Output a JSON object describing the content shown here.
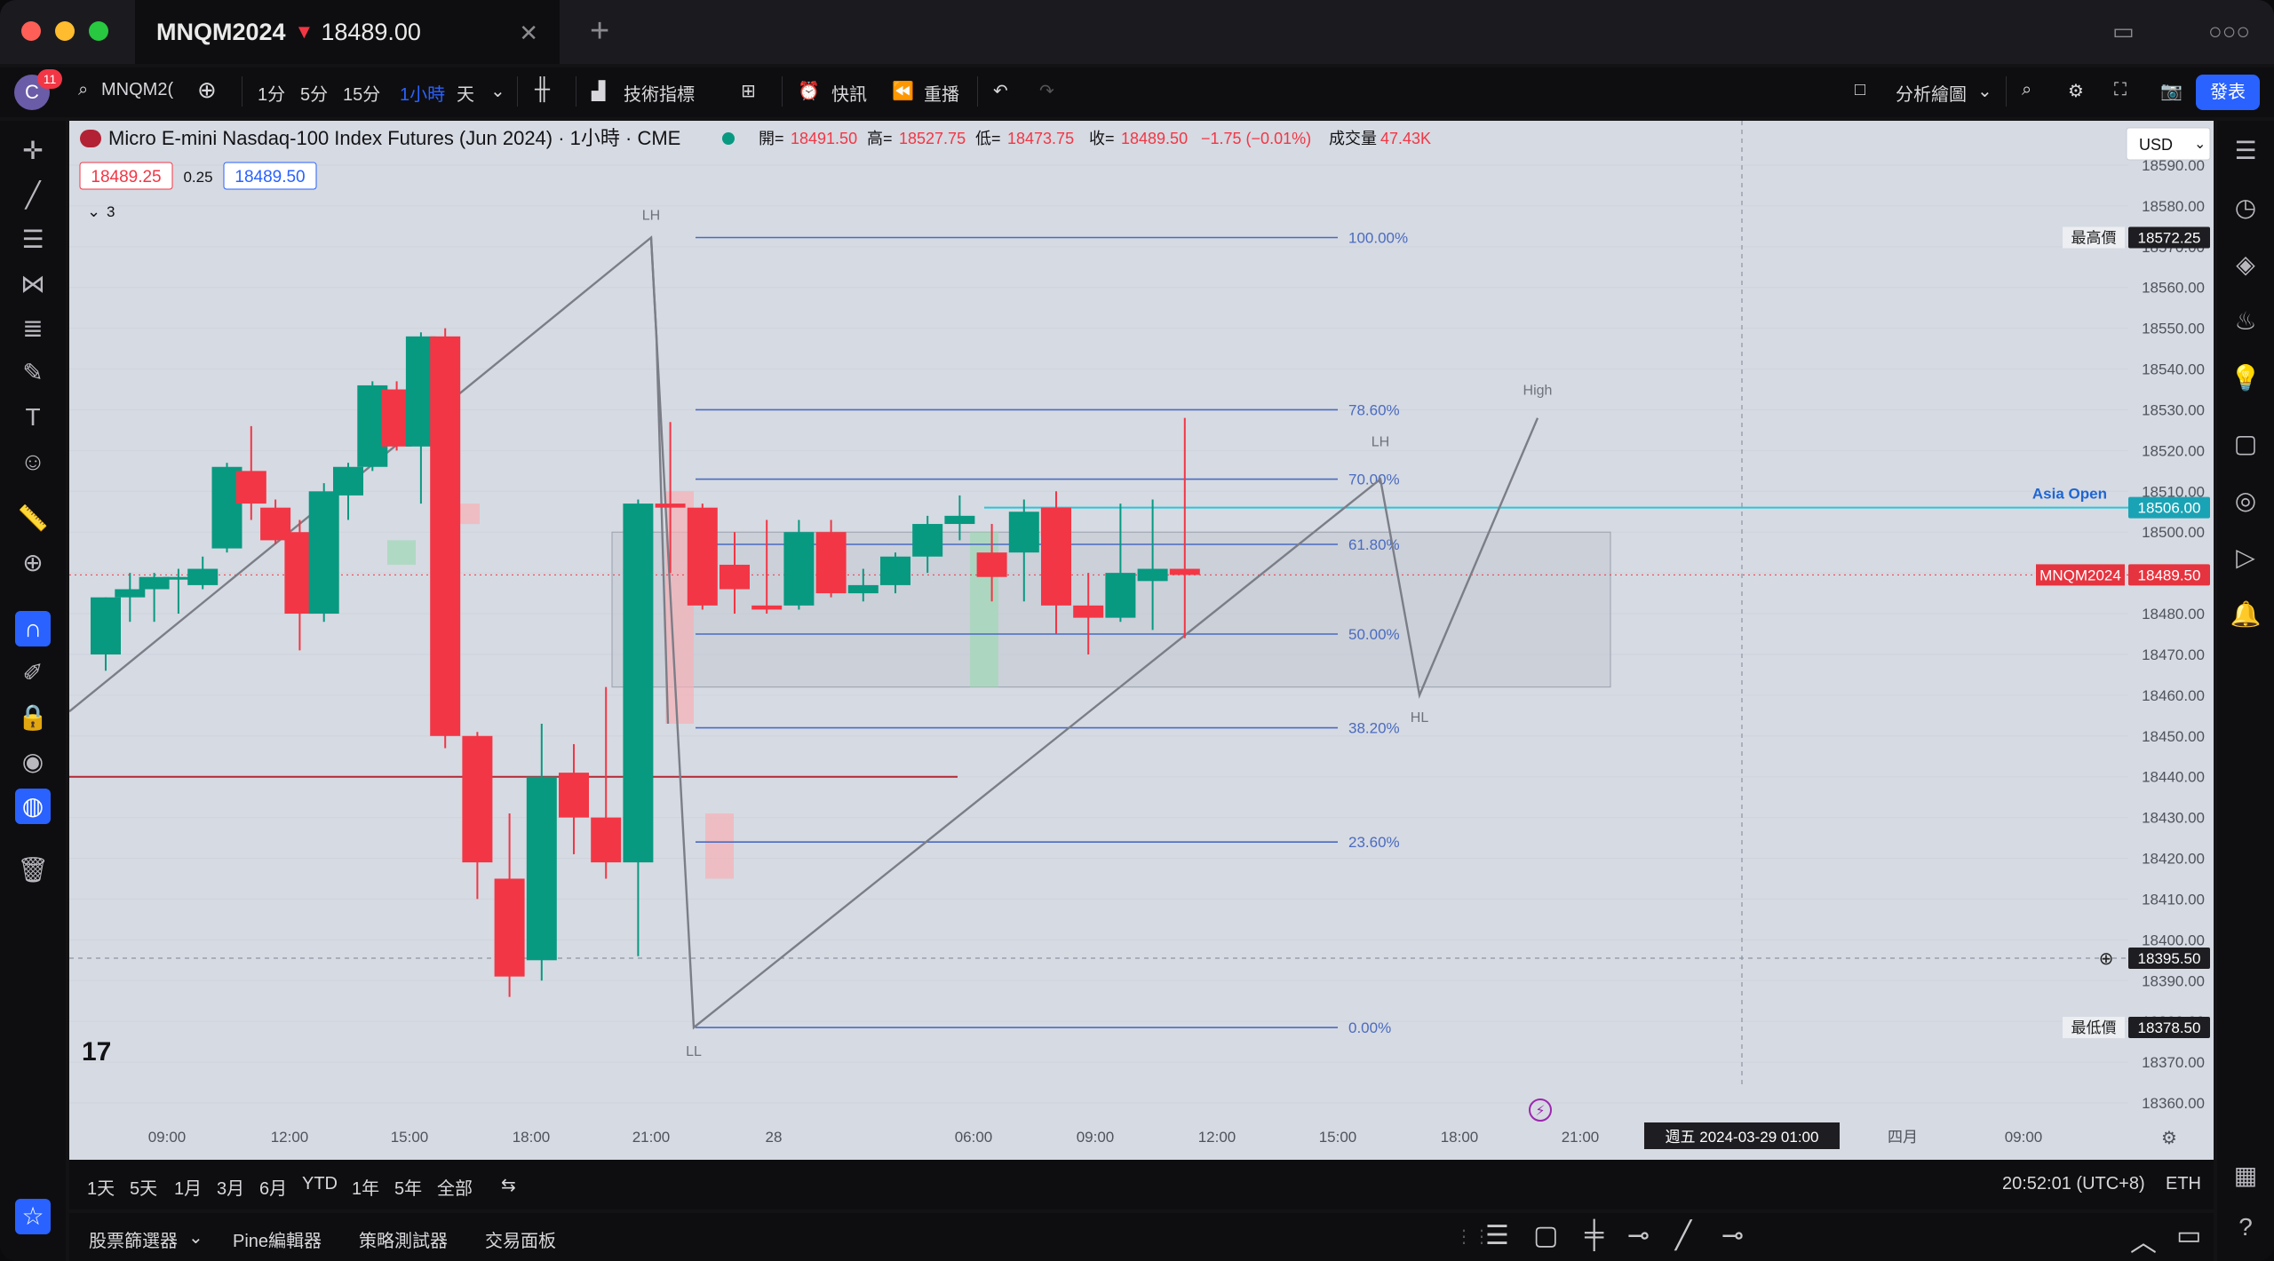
{
  "window": {
    "tab_symbol": "MNQM2024",
    "tab_price": "18489.00",
    "tab_direction_icon": "triangle-down-icon",
    "traffic_colors": [
      "#ff5f57",
      "#febc2e",
      "#28c840"
    ]
  },
  "toolbar": {
    "avatar_letter": "C",
    "notification_count": "11",
    "symbol_search": "MNQM2(",
    "intervals": [
      "1分",
      "5分",
      "15分",
      "1小時",
      "天"
    ],
    "active_interval": "1小時",
    "indicators_label": "技術指標",
    "alerts_label": "快訊",
    "replay_label": "重播",
    "layout_label": "分析繪圖",
    "publish_label": "發表"
  },
  "legend": {
    "title": "Micro E-mini Nasdaq-100 Index Futures (Jun 2024) · 1小時 · CME",
    "open_label": "開=",
    "open": "18491.50",
    "high_label": "高=",
    "high": "18527.75",
    "low_label": "低=",
    "low": "18473.75",
    "close_label": "收=",
    "close": "18489.50",
    "change": "−1.75 (−0.01%)",
    "volume_label": "成交量",
    "volume": "47.43K",
    "bid": "18489.25",
    "spread": "0.25",
    "ask": "18489.50",
    "indicator_count": "3",
    "currency": "USD"
  },
  "colors": {
    "up": "#089981",
    "down": "#f23645",
    "fib": "#4a6bbf",
    "asia_open": "#26c6da",
    "chart_bg": "#d6dae2",
    "accent": "#2962ff"
  },
  "chart_data": {
    "type": "candlestick",
    "symbol": "MNQM2024",
    "interval": "1小時",
    "ylim": [
      18350,
      18595
    ],
    "y_ticks": [
      "18590.00",
      "18580.00",
      "18570.00",
      "18560.00",
      "18550.00",
      "18540.00",
      "18530.00",
      "18520.00",
      "18510.00",
      "18500.00",
      "18490.00",
      "18480.00",
      "18470.00",
      "18460.00",
      "18450.00",
      "18440.00",
      "18430.00",
      "18420.00",
      "18410.00",
      "18400.00",
      "18390.00",
      "18380.00",
      "18370.00",
      "18360.00"
    ],
    "x_ticks": [
      "09:00",
      "12:00",
      "15:00",
      "18:00",
      "21:00",
      "28",
      "06:00",
      "09:00",
      "12:00",
      "15:00",
      "18:00",
      "21:00",
      "週五 2024-03-29   01:00",
      "四月",
      "09:00"
    ],
    "candles": [
      {
        "o": 18470,
        "h": 18484,
        "l": 18466,
        "c": 18484
      },
      {
        "o": 18484,
        "h": 18490,
        "l": 18478,
        "c": 18486
      },
      {
        "o": 18486,
        "h": 18490,
        "l": 18478,
        "c": 18489
      },
      {
        "o": 18489,
        "h": 18491,
        "l": 18480,
        "c": 18489
      },
      {
        "o": 18487,
        "h": 18494,
        "l": 18486,
        "c": 18491
      },
      {
        "o": 18496,
        "h": 18517,
        "l": 18495,
        "c": 18516
      },
      {
        "o": 18515,
        "h": 18526,
        "l": 18503,
        "c": 18507
      },
      {
        "o": 18506,
        "h": 18508,
        "l": 18497,
        "c": 18498
      },
      {
        "o": 18500,
        "h": 18503,
        "l": 18471,
        "c": 18480
      },
      {
        "o": 18480,
        "h": 18512,
        "l": 18478,
        "c": 18510
      },
      {
        "o": 18509,
        "h": 18517,
        "l": 18503,
        "c": 18516
      },
      {
        "o": 18516,
        "h": 18537,
        "l": 18515,
        "c": 18536
      },
      {
        "o": 18535,
        "h": 18537,
        "l": 18520,
        "c": 18521
      },
      {
        "o": 18521,
        "h": 18549,
        "l": 18507,
        "c": 18548
      },
      {
        "o": 18548,
        "h": 18550,
        "l": 18447,
        "c": 18450
      },
      {
        "o": 18450,
        "h": 18451,
        "l": 18410,
        "c": 18419
      },
      {
        "o": 18415,
        "h": 18431,
        "l": 18386,
        "c": 18391
      },
      {
        "o": 18395,
        "h": 18453,
        "l": 18390,
        "c": 18440
      },
      {
        "o": 18441,
        "h": 18448,
        "l": 18421,
        "c": 18430
      },
      {
        "o": 18430,
        "h": 18462,
        "l": 18415,
        "c": 18419
      },
      {
        "o": 18419,
        "h": 18508,
        "l": 18396,
        "c": 18507
      },
      {
        "o": 18507,
        "h": 18527,
        "l": 18490,
        "c": 18506
      },
      {
        "o": 18506,
        "h": 18507,
        "l": 18481,
        "c": 18482
      },
      {
        "o": 18492,
        "h": 18500,
        "l": 18480,
        "c": 18486
      },
      {
        "o": 18482,
        "h": 18503,
        "l": 18480,
        "c": 18481
      },
      {
        "o": 18482,
        "h": 18503,
        "l": 18481,
        "c": 18500
      },
      {
        "o": 18500,
        "h": 18503,
        "l": 18484,
        "c": 18485
      },
      {
        "o": 18485,
        "h": 18491,
        "l": 18483,
        "c": 18487
      },
      {
        "o": 18487,
        "h": 18495,
        "l": 18485,
        "c": 18494
      },
      {
        "o": 18494,
        "h": 18504,
        "l": 18490,
        "c": 18502
      },
      {
        "o": 18502,
        "h": 18509,
        "l": 18498,
        "c": 18504
      },
      {
        "o": 18495,
        "h": 18502,
        "l": 18483,
        "c": 18489
      },
      {
        "o": 18495,
        "h": 18508,
        "l": 18483,
        "c": 18505
      },
      {
        "o": 18506,
        "h": 18510,
        "l": 18475,
        "c": 18482
      },
      {
        "o": 18482,
        "h": 18490,
        "l": 18470,
        "c": 18479
      },
      {
        "o": 18479,
        "h": 18507,
        "l": 18478,
        "c": 18490
      },
      {
        "o": 18488,
        "h": 18508,
        "l": 18476,
        "c": 18491
      },
      {
        "o": 18491,
        "h": 18528,
        "l": 18474,
        "c": 18489.5
      }
    ],
    "fib_levels": [
      {
        "label": "100.00%",
        "value": 18572.25
      },
      {
        "label": "78.60%",
        "value": 18530
      },
      {
        "label": "70.00%",
        "value": 18513
      },
      {
        "label": "61.80%",
        "value": 18497
      },
      {
        "label": "50.00%",
        "value": 18475
      },
      {
        "label": "38.20%",
        "value": 18452
      },
      {
        "label": "23.60%",
        "value": 18424
      },
      {
        "label": "0.00%",
        "value": 18378.5
      }
    ],
    "pivot_labels": [
      {
        "text": "LH",
        "value": 18572.25
      },
      {
        "text": "LL",
        "value": 18378.5
      },
      {
        "text": "LH",
        "value": 18515
      },
      {
        "text": "HL",
        "value": 18460
      },
      {
        "text": "High",
        "value": 18528
      }
    ],
    "price_labels": [
      {
        "text": "最高價",
        "value": "18572.25"
      },
      {
        "text": "Asia Open",
        "value": "18506.00"
      },
      {
        "text": "MNQM2024",
        "value": "18489.50"
      },
      {
        "text": "",
        "value": "18395.50"
      },
      {
        "text": "最低價",
        "value": "18378.50"
      }
    ]
  },
  "range_bar": {
    "ranges": [
      "1天",
      "5天",
      "1月",
      "3月",
      "6月",
      "YTD",
      "1年",
      "5年",
      "全部"
    ],
    "clock": "20:52:01 (UTC+8)",
    "session": "ETH"
  },
  "panels": {
    "tabs": [
      "股票篩選器",
      "Pine編輯器",
      "策略測試器",
      "交易面板"
    ]
  }
}
